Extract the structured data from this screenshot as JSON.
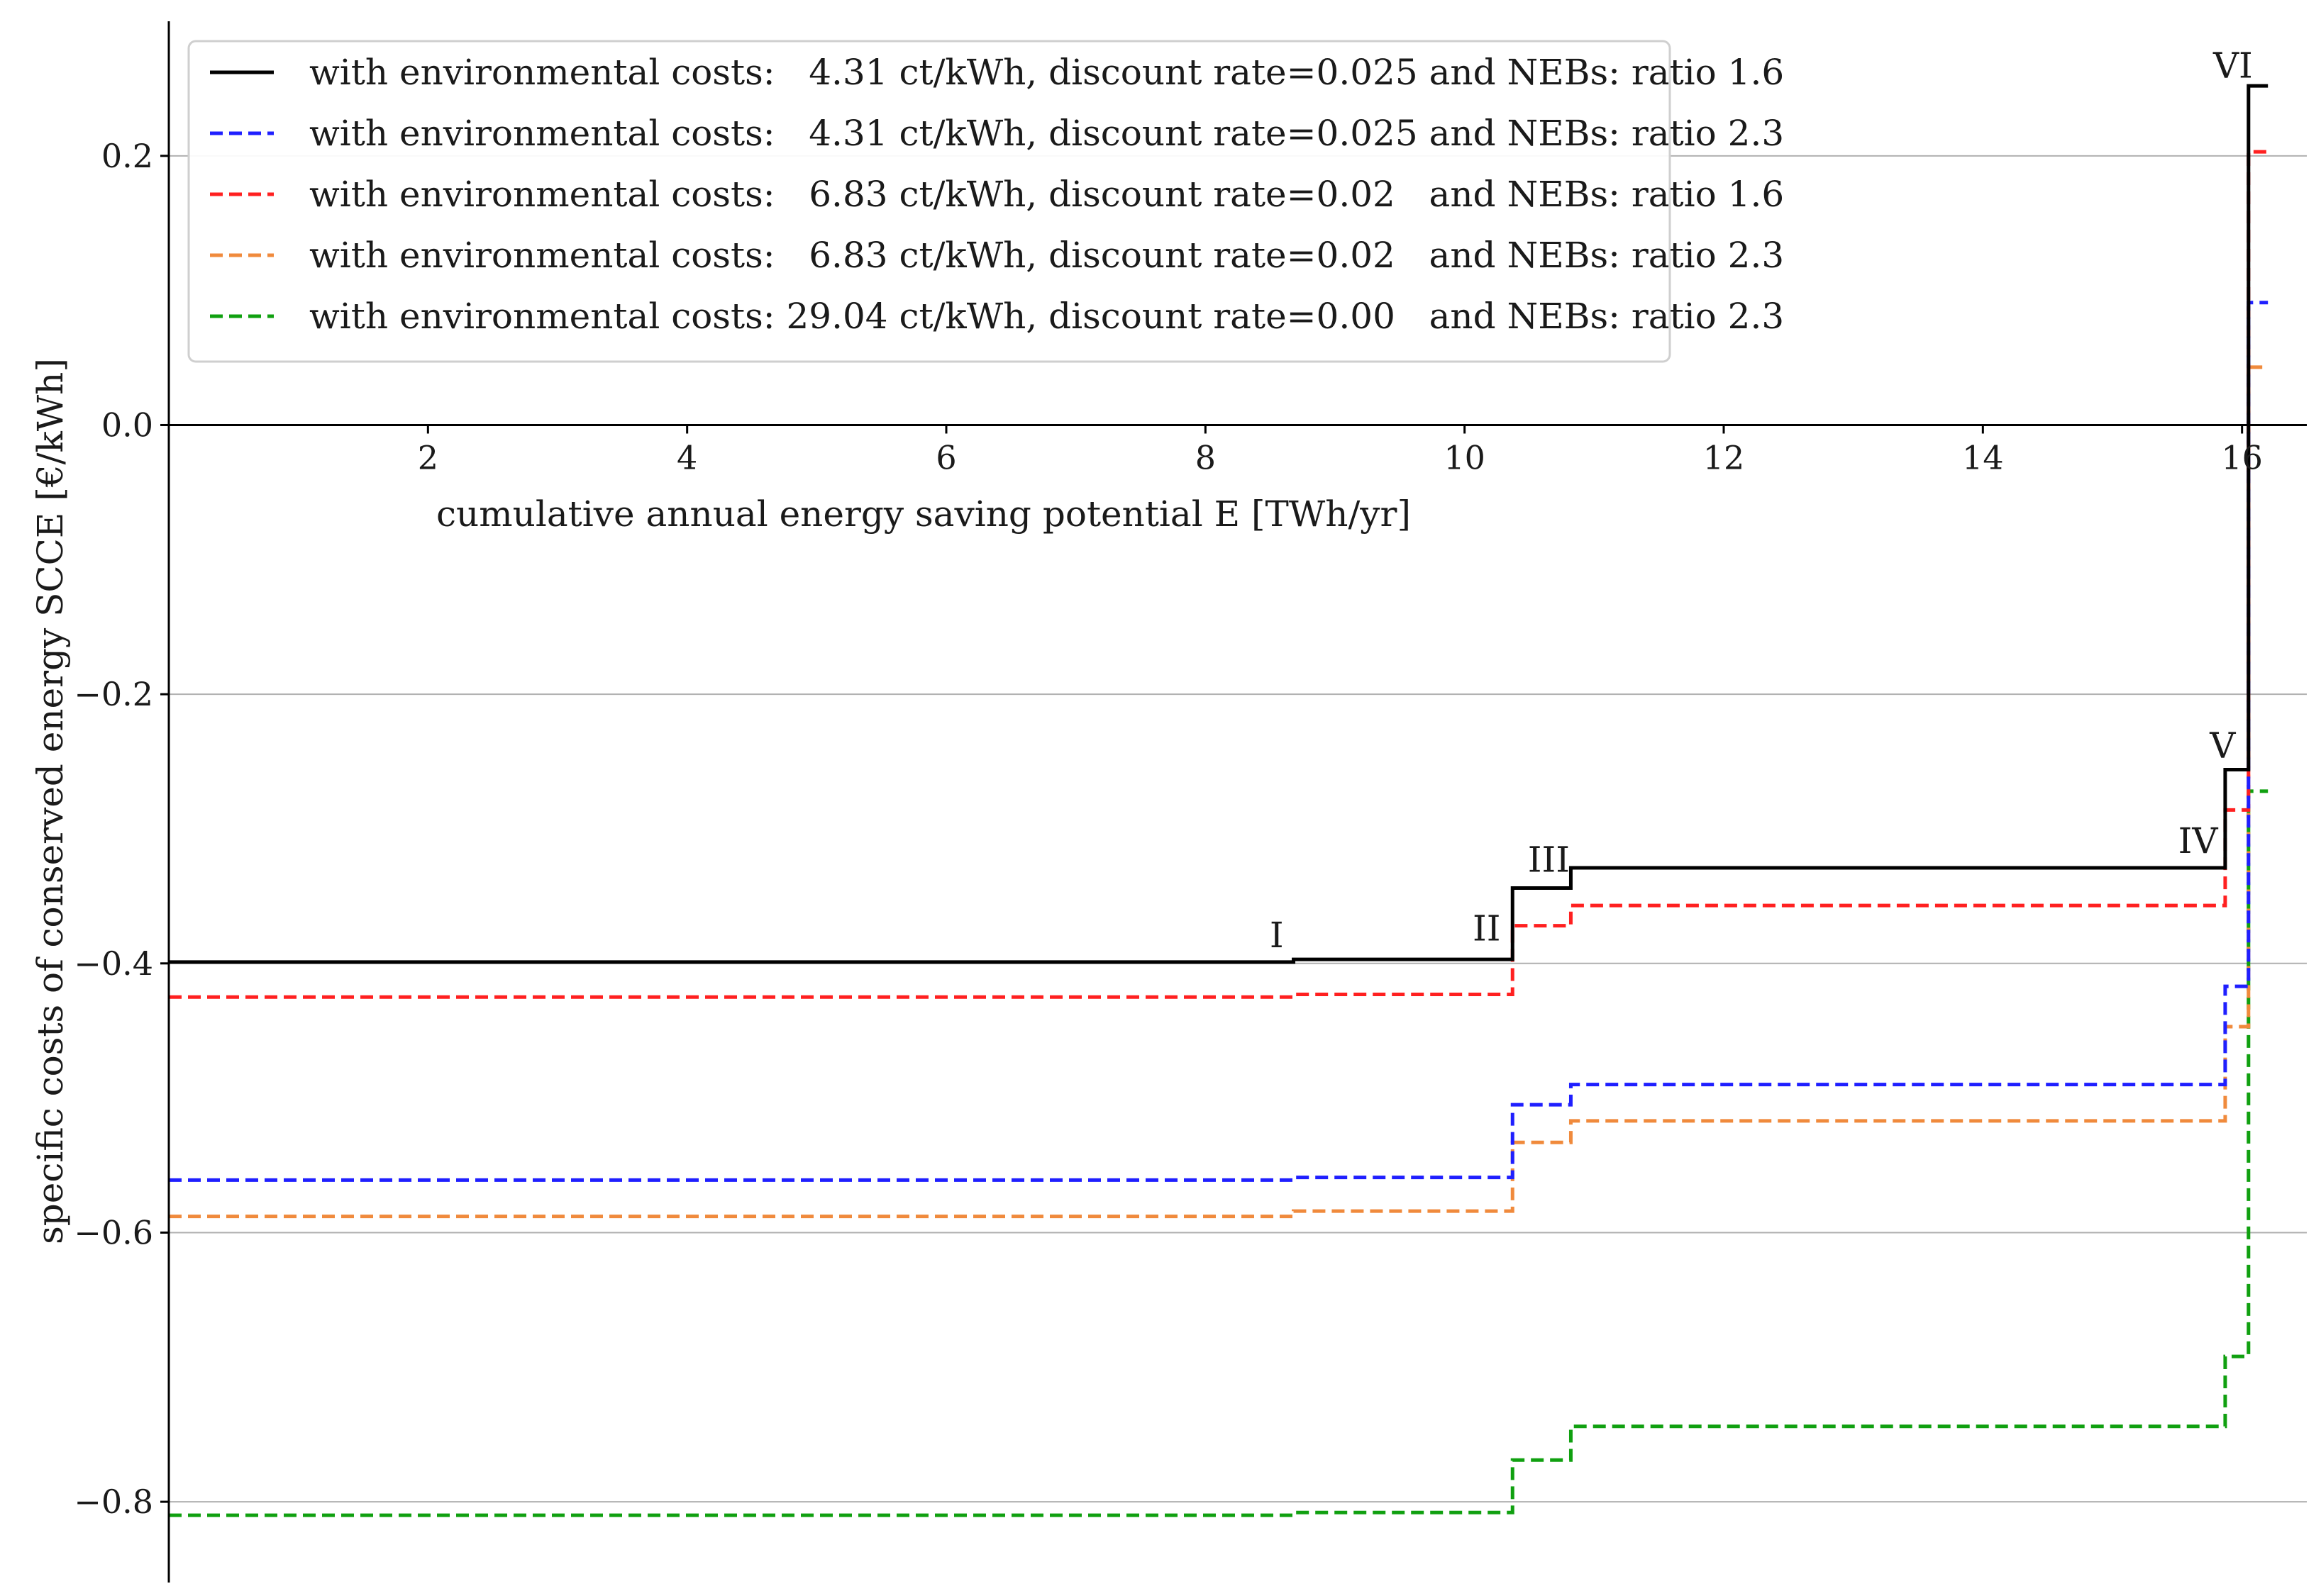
{
  "chart_data": {
    "type": "line",
    "title": "",
    "xlabel": "cumulative annual energy saving potential E [TWh/yr]",
    "ylabel": "specific costs of conserved energy SCCE [€/kWh]",
    "xlim": [
      0,
      16.5
    ],
    "ylim": [
      -0.86,
      0.3
    ],
    "xticks": [
      2,
      4,
      6,
      8,
      10,
      12,
      14,
      16
    ],
    "yticks": [
      -0.8,
      -0.6,
      -0.4,
      -0.2,
      0.0,
      0.2
    ],
    "xtick_labels": [
      "2",
      "4",
      "6",
      "8",
      "10",
      "12",
      "14",
      "16"
    ],
    "ytick_labels": [
      "−0.8",
      "−0.6",
      "−0.4",
      "−0.2",
      "0.0",
      "0.2"
    ],
    "grid": "horizontal",
    "legend_position": "top-left",
    "steps_x": [
      0,
      8.68,
      10.37,
      10.82,
      15.87,
      16.05,
      16.2
    ],
    "series": [
      {
        "name": "with environmental costs:   4.31 ct/kWh, discount rate=0.025 and NEBs: ratio 1.6",
        "color": "#000000",
        "dash": "solid",
        "values": [
          -0.399,
          -0.397,
          -0.344,
          -0.329,
          -0.256,
          0.252
        ]
      },
      {
        "name": "with environmental costs:   4.31 ct/kWh, discount rate=0.025 and NEBs: ratio 2.3",
        "color": "#1f1fff",
        "dash": "dashed",
        "values": [
          -0.561,
          -0.559,
          -0.505,
          -0.49,
          -0.417,
          0.091
        ]
      },
      {
        "name": "with environmental costs:   6.83 ct/kWh, discount rate=0.02   and NEBs: ratio 1.6",
        "color": "#ff2020",
        "dash": "dashed",
        "values": [
          -0.425,
          -0.423,
          -0.372,
          -0.357,
          -0.286,
          0.203
        ]
      },
      {
        "name": "with environmental costs:   6.83 ct/kWh, discount rate=0.02   and NEBs: ratio 2.3",
        "color": "#f08a3c",
        "dash": "dashed",
        "values": [
          -0.588,
          -0.584,
          -0.533,
          -0.517,
          -0.447,
          0.043
        ]
      },
      {
        "name": "with environmental costs: 29.04 ct/kWh, discount rate=0.00   and NEBs: ratio 2.3",
        "color": "#10a010",
        "dash": "dashed",
        "values": [
          -0.81,
          -0.808,
          -0.769,
          -0.744,
          -0.692,
          -0.272
        ]
      }
    ],
    "annotations": [
      {
        "text": "I",
        "x": 8.55,
        "y": -0.388
      },
      {
        "text": "II",
        "x": 10.17,
        "y": -0.383
      },
      {
        "text": "III",
        "x": 10.65,
        "y": -0.332
      },
      {
        "text": "IV",
        "x": 15.66,
        "y": -0.318
      },
      {
        "text": "V",
        "x": 15.85,
        "y": -0.247
      },
      {
        "text": "VI",
        "x": 15.93,
        "y": 0.258
      }
    ]
  }
}
